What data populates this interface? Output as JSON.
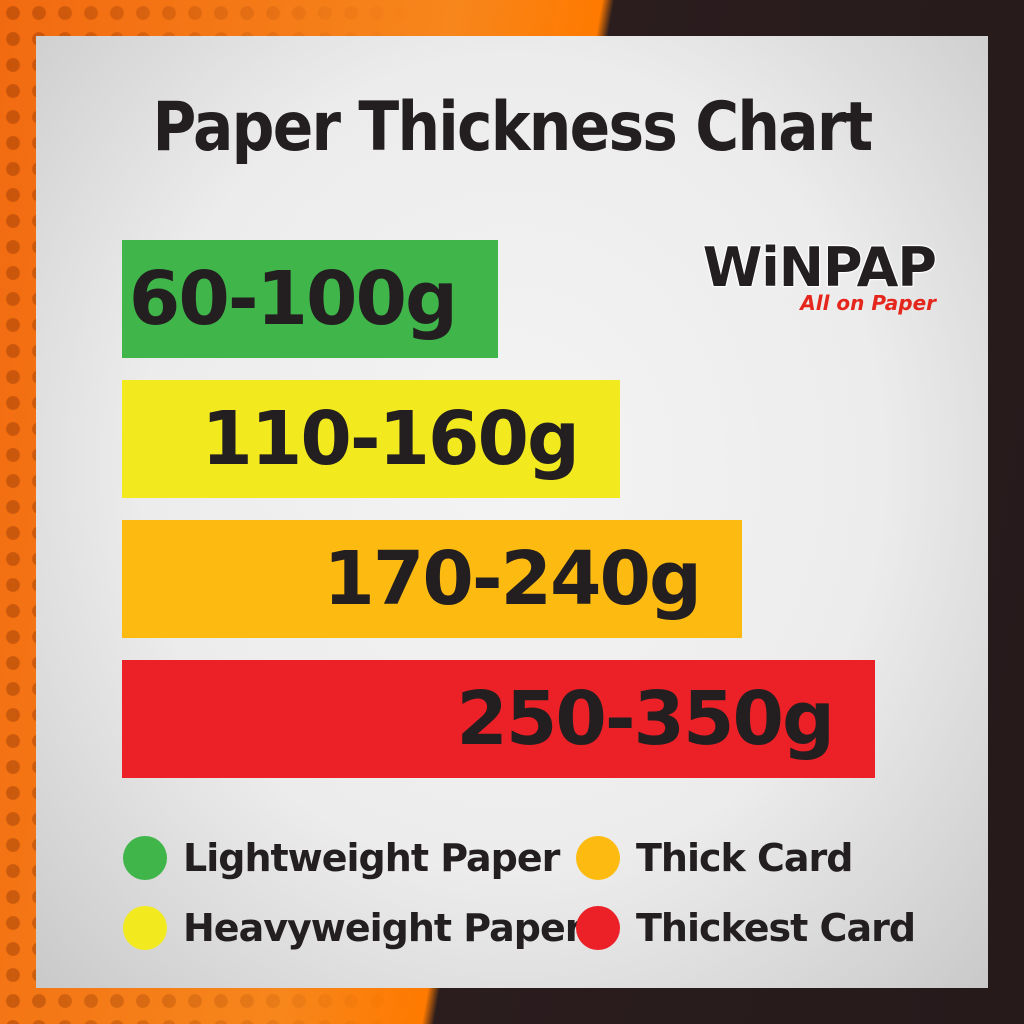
{
  "header": {
    "title": "Paper Thickness Chart"
  },
  "logo": {
    "name": "WiNPAP",
    "tagline": "All on Paper"
  },
  "bars": [
    {
      "label": "60-100g",
      "color": "#3fb54a"
    },
    {
      "label": "110-160g",
      "color": "#f2ea1f"
    },
    {
      "label": "170-240g",
      "color": "#fdbb12"
    },
    {
      "label": "250-350g",
      "color": "#ec2027"
    }
  ],
  "legend": [
    {
      "label": "Lightweight Paper",
      "color": "#3fb54a"
    },
    {
      "label": "Heavyweight Paper",
      "color": "#f2ea1f"
    },
    {
      "label": "Thick Card",
      "color": "#fdbb12"
    },
    {
      "label": "Thickest Card",
      "color": "#ec2027"
    }
  ]
}
